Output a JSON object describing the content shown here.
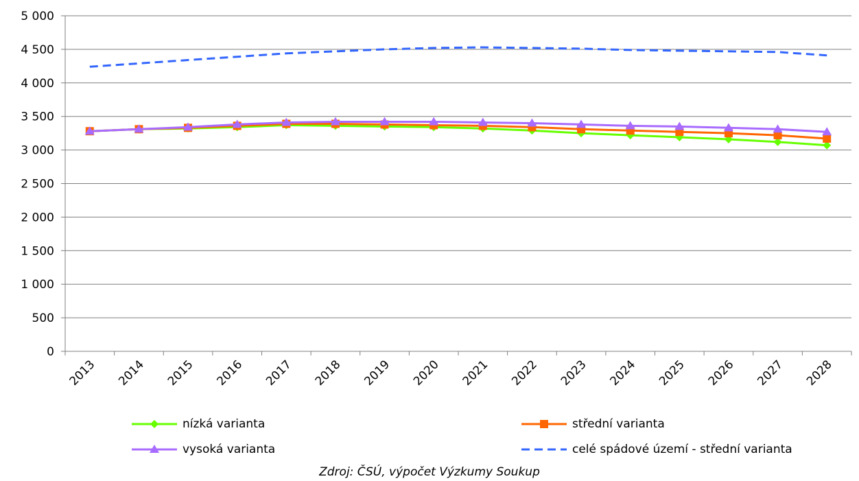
{
  "chart_data": {
    "type": "line",
    "categories": [
      "2013",
      "2014",
      "2015",
      "2016",
      "2017",
      "2018",
      "2019",
      "2020",
      "2021",
      "2022",
      "2023",
      "2024",
      "2025",
      "2026",
      "2027",
      "2028"
    ],
    "ylim": [
      0,
      5000
    ],
    "yticks": [
      0,
      500,
      1000,
      1500,
      2000,
      2500,
      3000,
      3500,
      4000,
      4500,
      5000
    ],
    "ytick_labels": [
      "0",
      "500",
      "1 000",
      "1 500",
      "2 000",
      "2 500",
      "3 000",
      "3 500",
      "4 000",
      "4 500",
      "5 000"
    ],
    "grid": true,
    "legend_position": "bottom",
    "series": [
      {
        "name": "nízká varianta",
        "color": "#66FF00",
        "marker": "diamond",
        "dash": false,
        "values": [
          3280,
          3310,
          3320,
          3340,
          3370,
          3360,
          3350,
          3340,
          3320,
          3290,
          3250,
          3220,
          3190,
          3160,
          3120,
          3070
        ]
      },
      {
        "name": "střední varianta",
        "color": "#FF6600",
        "marker": "square",
        "dash": false,
        "values": [
          3280,
          3310,
          3330,
          3360,
          3390,
          3390,
          3380,
          3370,
          3360,
          3340,
          3310,
          3290,
          3270,
          3250,
          3220,
          3170
        ]
      },
      {
        "name": "vysoká varianta",
        "color": "#A86BFF",
        "marker": "triangle",
        "dash": false,
        "values": [
          3280,
          3310,
          3340,
          3380,
          3410,
          3420,
          3420,
          3420,
          3410,
          3400,
          3380,
          3360,
          3350,
          3330,
          3310,
          3270
        ]
      },
      {
        "name": "celé spádové území - střední varianta",
        "color": "#3366FF",
        "marker": "none",
        "dash": true,
        "values": [
          4240,
          4290,
          4340,
          4390,
          4440,
          4470,
          4500,
          4520,
          4530,
          4520,
          4510,
          4490,
          4480,
          4470,
          4460,
          4410
        ]
      }
    ],
    "source": "Zdroj: ČSÚ, výpočet Výzkumy Soukup"
  }
}
